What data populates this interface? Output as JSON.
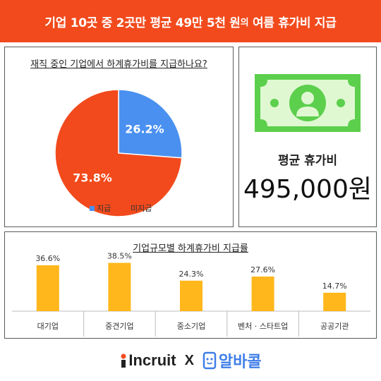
{
  "header": {
    "title_main": "기업 10곳 중 2곳만 평균 49만 5천 원",
    "title_particle": "의",
    "title_rest": " 여름 휴가비 지급"
  },
  "pie_panel": {
    "title": "재직 중인 기업에서 하계휴가비를 지급하나요?"
  },
  "avg_panel": {
    "icon": "money-bill-icon",
    "label": "평균 휴가비",
    "value": "495,000원"
  },
  "bar_panel": {
    "title": "기업규모별 하계휴가비 지급률"
  },
  "footer": {
    "brand1": "Incruit",
    "separator": "X",
    "brand2": "알바콜"
  },
  "colors": {
    "accent": "#f24a1c",
    "pie_give": "#4a90f0",
    "pie_not_give": "#f24a1c",
    "bar": "#ffb71b",
    "bill": "#5ccf4c"
  },
  "chart_data": [
    {
      "type": "pie",
      "title": "재직 중인 기업에서 하계휴가비를 지급하나요?",
      "labels": [
        "지급",
        "미지급"
      ],
      "values": [
        26.2,
        73.8
      ],
      "value_labels": [
        "26.2%",
        "73.8%"
      ],
      "legend": "bottom"
    },
    {
      "type": "bar",
      "title": "기업규모별 하계휴가비 지급률",
      "categories": [
        "대기업",
        "중견기업",
        "중소기업",
        "벤처 · 스타트업",
        "공공기관"
      ],
      "values": [
        36.6,
        38.5,
        24.3,
        27.6,
        14.7
      ],
      "value_labels": [
        "36.6%",
        "38.5%",
        "24.3%",
        "27.6%",
        "14.7%"
      ],
      "ylim": [
        0,
        45
      ],
      "grid": false
    }
  ]
}
